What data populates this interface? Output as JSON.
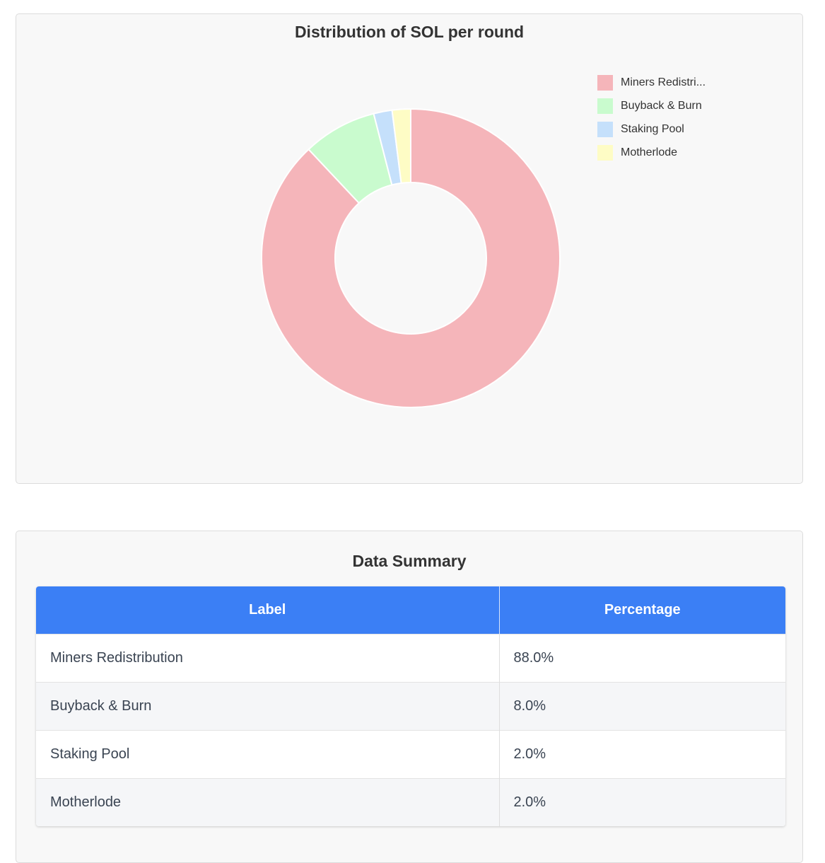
{
  "chart_data": {
    "type": "pie",
    "variant": "donut",
    "title": "Distribution of SOL per round",
    "categories": [
      "Miners Redistribution",
      "Buyback & Burn",
      "Staking Pool",
      "Motherlode"
    ],
    "legend_labels": [
      "Miners Redistri...",
      "Buyback & Burn",
      "Staking Pool",
      "Motherlode"
    ],
    "values": [
      88,
      8,
      2,
      2
    ],
    "colors": [
      "#f5b5ba",
      "#c9fbce",
      "#c5e0fb",
      "#fefcc5"
    ],
    "legend_position": "top-right"
  },
  "summary": {
    "title": "Data Summary",
    "headers": {
      "label": "Label",
      "percentage": "Percentage"
    },
    "rows": [
      {
        "label": "Miners Redistribution",
        "percentage": "88.0%"
      },
      {
        "label": "Buyback & Burn",
        "percentage": "8.0%"
      },
      {
        "label": "Staking Pool",
        "percentage": "2.0%"
      },
      {
        "label": "Motherlode",
        "percentage": "2.0%"
      }
    ]
  }
}
